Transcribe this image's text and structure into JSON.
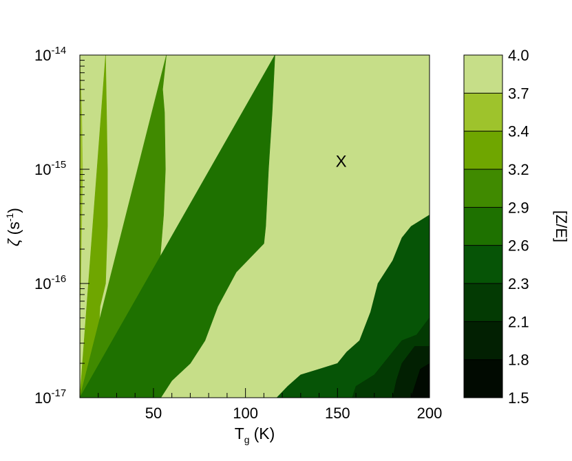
{
  "chart_data": {
    "type": "heatmap",
    "subtype": "filled-contour",
    "xlabel": "T",
    "xlabel_sub": "g",
    "xlabel_unit": "(K)",
    "ylabel": "ζ",
    "ylabel_unit": "(s",
    "ylabel_sup": "-1",
    "ylabel_unit_close": ")",
    "xlim": [
      10,
      200
    ],
    "ylim": [
      -17,
      -14
    ],
    "y_scale": "log",
    "x_ticks": [
      {
        "value": 50,
        "label": "50"
      },
      {
        "value": 100,
        "label": "100"
      },
      {
        "value": 150,
        "label": "150"
      },
      {
        "value": 200,
        "label": "200"
      }
    ],
    "y_ticks": [
      {
        "value": -17,
        "base": "10",
        "exp": "-17"
      },
      {
        "value": -16,
        "base": "10",
        "exp": "-16"
      },
      {
        "value": -15,
        "base": "10",
        "exp": "-15"
      },
      {
        "value": -14,
        "base": "10",
        "exp": "-14"
      }
    ],
    "colorbar": {
      "label": "[Z/E]",
      "levels": [
        1.5,
        1.8,
        2.1,
        2.3,
        2.6,
        2.9,
        3.2,
        3.4,
        3.7,
        4.0
      ],
      "level_labels": [
        "1.5",
        "1.8",
        "2.1",
        "2.3",
        "2.6",
        "2.9",
        "3.2",
        "3.4",
        "3.7",
        "4.0"
      ],
      "colors": [
        "#010a01",
        "#022002",
        "#033a03",
        "#065406",
        "#1e7100",
        "#408a00",
        "#6fa600",
        "#9ec32c",
        "#c6de88"
      ]
    },
    "boundaries": [
      {
        "level": 3.7,
        "points": [
          [
            10.0,
            -14.0
          ],
          [
            11.0,
            -14.5
          ],
          [
            11.5,
            -15.0
          ],
          [
            11.0,
            -15.5
          ],
          [
            10.5,
            -16.0
          ],
          [
            10.0,
            -16.2
          ]
        ]
      },
      {
        "level": 3.4,
        "points": [
          [
            24.0,
            -14.0
          ],
          [
            24.5,
            -14.5
          ],
          [
            25.0,
            -15.0
          ],
          [
            25.0,
            -15.5
          ],
          [
            24.0,
            -16.0
          ],
          [
            21.0,
            -16.2
          ],
          [
            20.0,
            -16.5
          ],
          [
            18.5,
            -16.8
          ],
          [
            16.0,
            -17.0
          ],
          [
            10.0,
            -17.0
          ]
        ]
      },
      {
        "level": 3.2,
        "points": [
          [
            57.0,
            -14.0
          ],
          [
            55.0,
            -14.3
          ],
          [
            56.0,
            -14.5
          ],
          [
            56.5,
            -15.0
          ],
          [
            55.5,
            -15.4
          ],
          [
            53.5,
            -15.8
          ],
          [
            52.0,
            -16.2
          ],
          [
            51.0,
            -16.5
          ],
          [
            40.0,
            -16.5
          ],
          [
            35.0,
            -16.8
          ],
          [
            32.0,
            -17.0
          ],
          [
            10.0,
            -17.0
          ]
        ]
      },
      {
        "level": 2.9,
        "points": [
          [
            116.0,
            -14.0
          ],
          [
            114.5,
            -14.5
          ],
          [
            112.5,
            -15.0
          ],
          [
            111.0,
            -15.5
          ],
          [
            110.0,
            -15.65
          ],
          [
            95.0,
            -15.9
          ],
          [
            85.0,
            -16.2
          ],
          [
            78.0,
            -16.5
          ],
          [
            70.0,
            -16.7
          ],
          [
            60.0,
            -16.85
          ],
          [
            54.0,
            -17.0
          ],
          [
            10.0,
            -17.0
          ]
        ]
      },
      {
        "level": 2.6,
        "points": [
          [
            200.0,
            -15.4
          ],
          [
            190.0,
            -15.5
          ],
          [
            185.0,
            -15.6
          ],
          [
            180.0,
            -15.8
          ],
          [
            172.0,
            -16.0
          ],
          [
            168.0,
            -16.25
          ],
          [
            162.0,
            -16.5
          ],
          [
            155.0,
            -16.6
          ],
          [
            150.0,
            -16.7
          ],
          [
            140.0,
            -16.75
          ],
          [
            130.0,
            -16.8
          ],
          [
            123.0,
            -16.9
          ],
          [
            117.0,
            -17.0
          ],
          [
            200.0,
            -17.0
          ]
        ]
      },
      {
        "level": 2.3,
        "points": [
          [
            200.0,
            -16.3
          ],
          [
            193.0,
            -16.45
          ],
          [
            185.0,
            -16.5
          ],
          [
            180.0,
            -16.6
          ],
          [
            175.0,
            -16.7
          ],
          [
            170.0,
            -16.8
          ],
          [
            165.0,
            -16.85
          ],
          [
            160.0,
            -16.9
          ],
          [
            158.0,
            -17.0
          ],
          [
            200.0,
            -17.0
          ]
        ]
      },
      {
        "level": 2.1,
        "points": [
          [
            200.0,
            -16.55
          ],
          [
            192.0,
            -16.55
          ],
          [
            185.0,
            -16.7
          ],
          [
            182.0,
            -16.85
          ],
          [
            180.0,
            -17.0
          ],
          [
            200.0,
            -17.0
          ]
        ]
      },
      {
        "level": 1.8,
        "points": [
          [
            200.0,
            -16.7
          ],
          [
            195.0,
            -16.75
          ],
          [
            192.0,
            -16.9
          ],
          [
            190.0,
            -17.0
          ],
          [
            200.0,
            -17.0
          ]
        ]
      }
    ],
    "annotations": [
      {
        "text": "X",
        "x": 152,
        "y": -14.93
      }
    ]
  }
}
